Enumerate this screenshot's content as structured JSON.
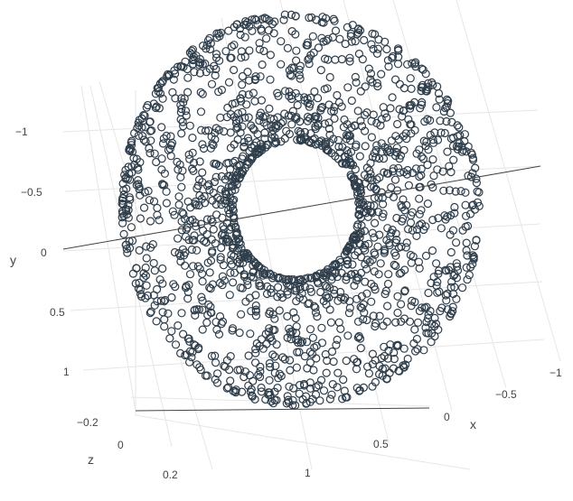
{
  "chart_data": {
    "type": "scatter",
    "subtype": "scatter3d",
    "shape": "torus (ring of hollow circle markers)",
    "title": "",
    "marker": {
      "symbol": "circle-open",
      "color": "#2f3e4b"
    },
    "axes": {
      "x": {
        "title": "x",
        "ticks": [
          "−1",
          "−0.5",
          "0",
          "0.5",
          "1"
        ],
        "range": [
          -1.2,
          1.2
        ]
      },
      "y": {
        "title": "y",
        "ticks": [
          "−1",
          "−0.5",
          "0",
          "0.5",
          "1"
        ],
        "range": [
          -1.2,
          1.2
        ]
      },
      "z": {
        "title": "z",
        "ticks": [
          "−0.2",
          "0",
          "0.2"
        ],
        "range": [
          -0.3,
          0.3
        ]
      }
    },
    "torus": {
      "major_radius": 0.8,
      "minor_radius": 0.38,
      "point_count": 1800
    },
    "grid": true,
    "legend": "none"
  }
}
